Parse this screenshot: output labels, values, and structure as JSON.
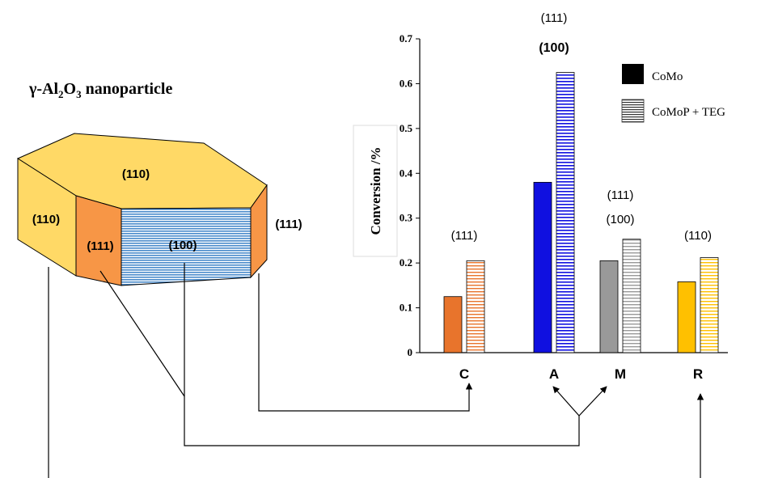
{
  "nanoparticle": {
    "title_prefix": "γ-Al",
    "title_sub1": "2",
    "title_mid": "O",
    "title_sub2": "3",
    "title_suffix": " nanoparticle",
    "facet_top": "(110)",
    "facet_left": "(110)",
    "facet_left_mid": "(111)",
    "facet_front": "(100)",
    "facet_right": "(111)"
  },
  "chart_data": {
    "type": "bar",
    "ylabel": "Conversion /%",
    "ylim": [
      0,
      0.7
    ],
    "yticks": [
      "0",
      "0.1",
      "0.2",
      "0.3",
      "0.4",
      "0.5",
      "0.6",
      "0.7"
    ],
    "categories": [
      "C",
      "A",
      "M",
      "R"
    ],
    "series": [
      {
        "name": "CoMo",
        "values": [
          0.125,
          0.38,
          0.205,
          0.158
        ]
      },
      {
        "name": "CoMoP + TEG",
        "values": [
          0.205,
          0.625,
          0.253,
          0.212
        ]
      }
    ],
    "category_colors": [
      "#E8742C",
      "#1010E0",
      "#999999",
      "#FFC000"
    ],
    "legend_position": "top-right",
    "annotations": [
      {
        "category": "C",
        "lines": [
          "(111)"
        ],
        "bold": false
      },
      {
        "category": "A",
        "lines": [
          "(111)",
          "(100)"
        ],
        "bold": true
      },
      {
        "category": "M",
        "lines": [
          "(111)",
          "(100)"
        ],
        "bold": false
      },
      {
        "category": "R",
        "lines": [
          "(110)"
        ],
        "bold": false
      }
    ]
  }
}
